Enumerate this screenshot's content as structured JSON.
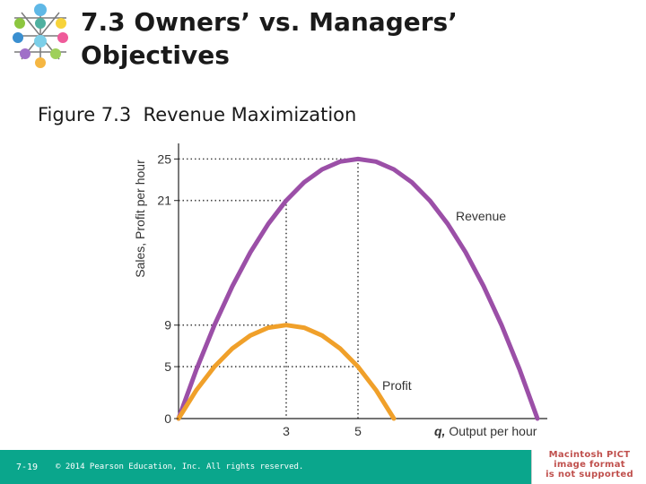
{
  "slide": {
    "title": "7.3 Owners’ vs. Managers’ Objectives",
    "figure_caption": "Figure 7.3  Revenue Maximization"
  },
  "footer": {
    "slide_number": "7-19",
    "copyright": "© 2014 Pearson Education, Inc. All rights reserved.",
    "background_color": "#0aa68c"
  },
  "pict_placeholder": {
    "lines": [
      "Macintosh PICT",
      "image format",
      "is not supported"
    ],
    "color": "#c0504d"
  },
  "logo": {
    "icon": "molecular-structure-icon"
  },
  "chart_data": {
    "type": "line",
    "title": "",
    "xlabel_var": "q,",
    "xlabel": " Output per hour",
    "ylabel": "Sales, Profit per hour",
    "xlim": [
      0,
      10
    ],
    "ylim": [
      0,
      26.5
    ],
    "xticks": [
      3,
      5
    ],
    "yticks": [
      0,
      5,
      9,
      21,
      25
    ],
    "grid": false,
    "reference_lines": [
      {
        "from": [
          0,
          25
        ],
        "to": [
          5,
          25
        ]
      },
      {
        "from": [
          5,
          25
        ],
        "to": [
          5,
          0
        ]
      },
      {
        "from": [
          0,
          21
        ],
        "to": [
          3,
          21
        ]
      },
      {
        "from": [
          3,
          21
        ],
        "to": [
          3,
          0
        ]
      },
      {
        "from": [
          0,
          9
        ],
        "to": [
          3,
          9
        ]
      },
      {
        "from": [
          0,
          5
        ],
        "to": [
          5,
          5
        ]
      }
    ],
    "series": [
      {
        "name": "Revenue",
        "color": "#9b4fa7",
        "x": [
          0,
          0.5,
          1,
          1.5,
          2,
          2.5,
          3,
          3.5,
          4,
          4.5,
          5,
          5.5,
          6,
          6.5,
          7,
          7.5,
          8,
          8.5,
          9,
          9.5,
          10
        ],
        "y": [
          0,
          4.75,
          9,
          12.75,
          16,
          18.75,
          21,
          22.75,
          24,
          24.75,
          25,
          24.75,
          24,
          22.75,
          21,
          18.75,
          16,
          12.75,
          9,
          4.75,
          0
        ]
      },
      {
        "name": "Profit",
        "color": "#f0a02a",
        "x": [
          0,
          0.5,
          1,
          1.5,
          2,
          2.5,
          3,
          3.5,
          4,
          4.5,
          5,
          5.5,
          6
        ],
        "y": [
          0,
          2.75,
          5,
          6.75,
          8,
          8.75,
          9,
          8.75,
          8,
          6.75,
          5,
          2.75,
          0
        ]
      }
    ]
  }
}
